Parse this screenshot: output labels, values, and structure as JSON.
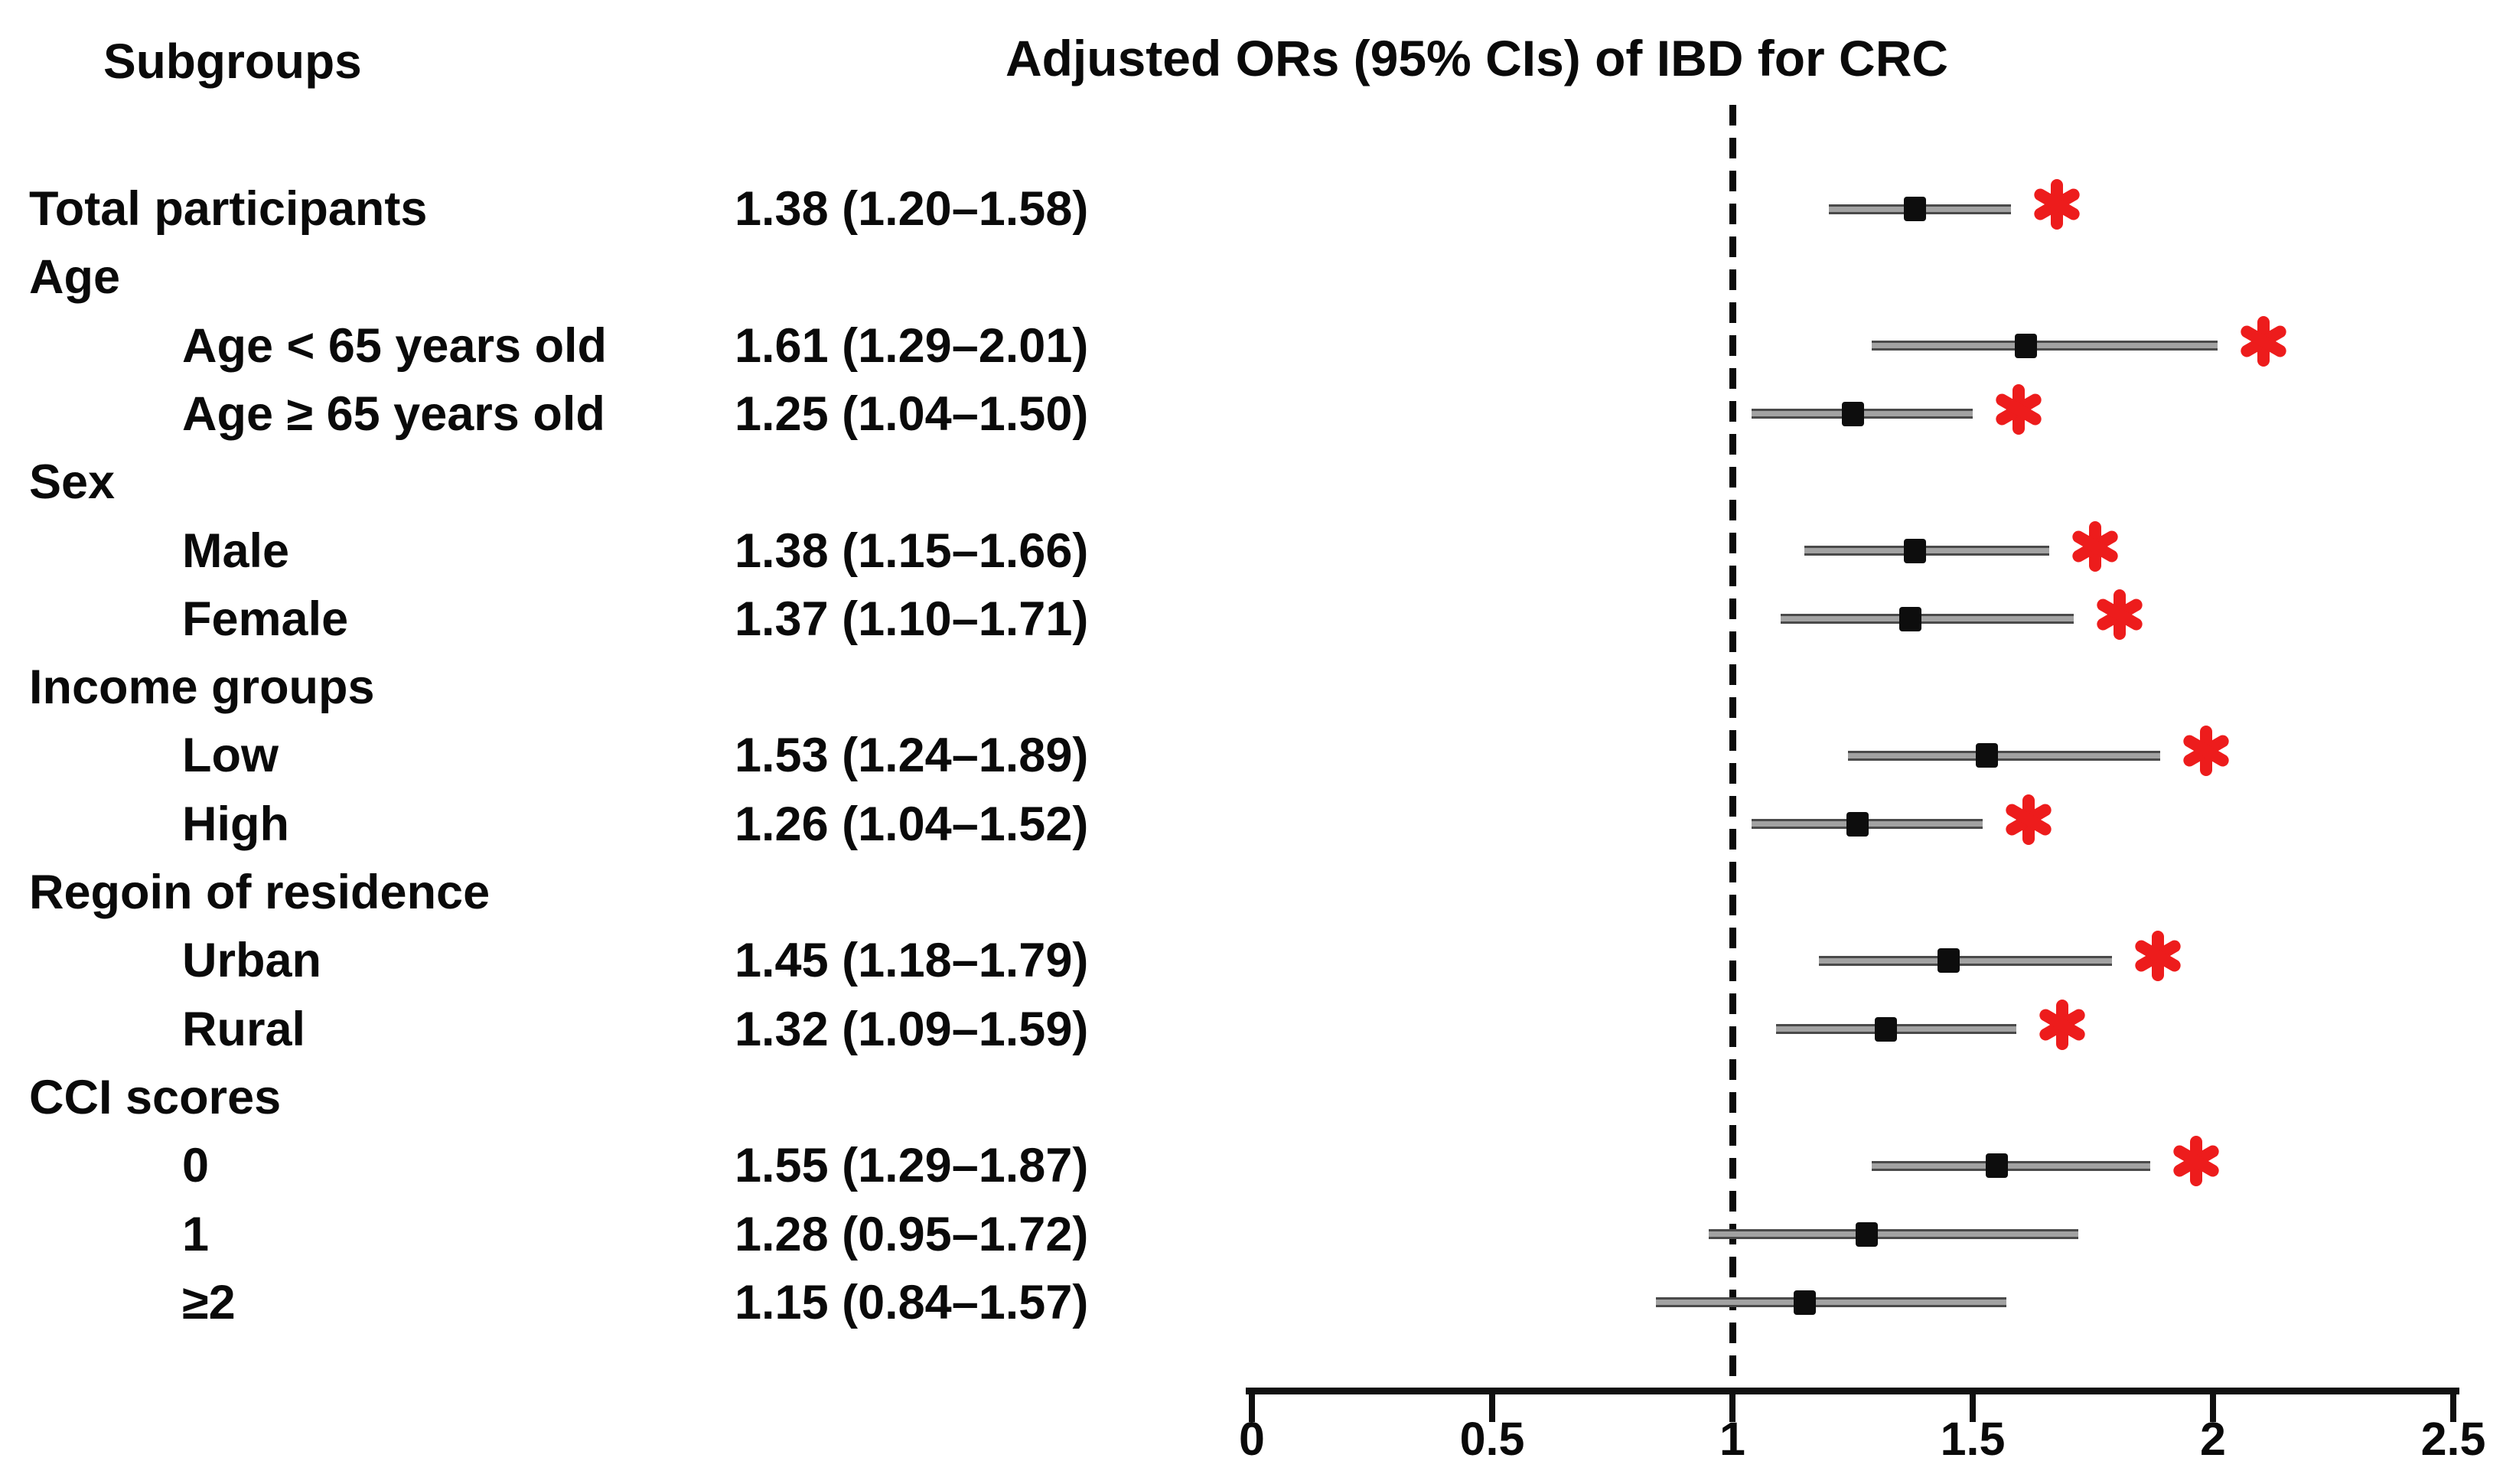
{
  "figure": {
    "subgroups_header": "Subgroups",
    "title": "Adjusted ORs (95% CIs) of IBD for CRC"
  },
  "colors": {
    "significance_red": "#ed1c1c",
    "ci_line_gray": "#a2a2a2",
    "ci_line_edge": "#4a4a4a",
    "marker_black": "#0d0d0d",
    "text_black": "#0a0a0a"
  },
  "chart_data": {
    "type": "forest",
    "title": "Adjusted ORs (95% CIs) of IBD for CRC",
    "left_header": "Subgroups",
    "x_axis": {
      "range": [
        0,
        2.5
      ],
      "ticks": [
        "0",
        "0.5",
        "1",
        "1.5",
        "2",
        "2.5"
      ],
      "reference_line": 1
    },
    "significance_symbol": "*",
    "rows": [
      {
        "kind": "estimate",
        "label": "Total participants",
        "indent": 0,
        "value_text": "1.38 (1.20–1.58)",
        "or": 1.38,
        "ci_low": 1.2,
        "ci_high": 1.58,
        "significant": true
      },
      {
        "kind": "group",
        "label": "Age"
      },
      {
        "kind": "estimate",
        "label": "Age < 65 years old",
        "indent": 1,
        "value_text": "1.61 (1.29–2.01)",
        "or": 1.61,
        "ci_low": 1.29,
        "ci_high": 2.01,
        "significant": true
      },
      {
        "kind": "estimate",
        "label": "Age ≥ 65 years old",
        "indent": 1,
        "value_text": "1.25 (1.04–1.50)",
        "or": 1.25,
        "ci_low": 1.04,
        "ci_high": 1.5,
        "significant": true
      },
      {
        "kind": "group",
        "label": "Sex"
      },
      {
        "kind": "estimate",
        "label": "Male",
        "indent": 1,
        "value_text": "1.38 (1.15–1.66)",
        "or": 1.38,
        "ci_low": 1.15,
        "ci_high": 1.66,
        "significant": true
      },
      {
        "kind": "estimate",
        "label": "Female",
        "indent": 1,
        "value_text": "1.37 (1.10–1.71)",
        "or": 1.37,
        "ci_low": 1.1,
        "ci_high": 1.71,
        "significant": true
      },
      {
        "kind": "group",
        "label": "Income groups"
      },
      {
        "kind": "estimate",
        "label": "Low",
        "indent": 1,
        "value_text": "1.53 (1.24–1.89)",
        "or": 1.53,
        "ci_low": 1.24,
        "ci_high": 1.89,
        "significant": true
      },
      {
        "kind": "estimate",
        "label": "High",
        "indent": 1,
        "value_text": "1.26 (1.04–1.52)",
        "or": 1.26,
        "ci_low": 1.04,
        "ci_high": 1.52,
        "significant": true
      },
      {
        "kind": "group",
        "label": "Regoin of residence"
      },
      {
        "kind": "estimate",
        "label": "Urban",
        "indent": 1,
        "value_text": "1.45 (1.18–1.79)",
        "or": 1.45,
        "ci_low": 1.18,
        "ci_high": 1.79,
        "significant": true
      },
      {
        "kind": "estimate",
        "label": "Rural",
        "indent": 1,
        "value_text": "1.32 (1.09–1.59)",
        "or": 1.32,
        "ci_low": 1.09,
        "ci_high": 1.59,
        "significant": true
      },
      {
        "kind": "group",
        "label": "CCI scores"
      },
      {
        "kind": "estimate",
        "label": "0",
        "indent": 1,
        "value_text": "1.55 (1.29–1.87)",
        "or": 1.55,
        "ci_low": 1.29,
        "ci_high": 1.87,
        "significant": true
      },
      {
        "kind": "estimate",
        "label": "1",
        "indent": 1,
        "value_text": "1.28 (0.95–1.72)",
        "or": 1.28,
        "ci_low": 0.95,
        "ci_high": 1.72,
        "significant": false
      },
      {
        "kind": "estimate",
        "label": "≥2",
        "indent": 1,
        "value_text": "1.15 (0.84–1.57)",
        "or": 1.15,
        "ci_low": 0.84,
        "ci_high": 1.57,
        "significant": false
      }
    ]
  }
}
